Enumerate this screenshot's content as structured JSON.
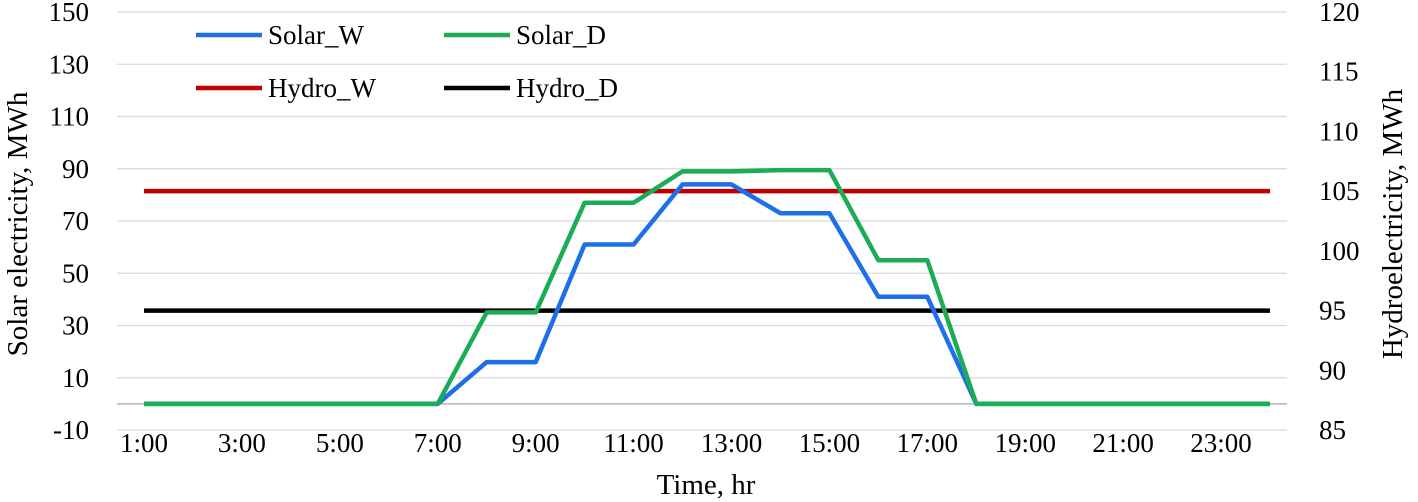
{
  "chart_data": {
    "type": "line",
    "x_categories": [
      "1:00",
      "2:00",
      "3:00",
      "4:00",
      "5:00",
      "6:00",
      "7:00",
      "8:00",
      "9:00",
      "10:00",
      "11:00",
      "12:00",
      "13:00",
      "14:00",
      "15:00",
      "16:00",
      "17:00",
      "18:00",
      "19:00",
      "20:00",
      "21:00",
      "22:00",
      "23:00",
      "24:00"
    ],
    "x_tick_labels": [
      "1:00",
      "3:00",
      "5:00",
      "7:00",
      "9:00",
      "11:00",
      "13:00",
      "15:00",
      "17:00",
      "19:00",
      "21:00",
      "23:00"
    ],
    "xlabel": "Time, hr",
    "y_left": {
      "label": "Solar electricity, MWh",
      "range": [
        -10,
        150
      ],
      "ticks": [
        "150",
        "130",
        "110",
        "90",
        "70",
        "50",
        "30",
        "10",
        "-10"
      ]
    },
    "y_right": {
      "label": "Hydroelectricity, MWh",
      "range": [
        85,
        120
      ],
      "ticks": [
        "120",
        "115",
        "110",
        "105",
        "100",
        "95",
        "90",
        "85"
      ]
    },
    "grid": "horizontal",
    "legend_position": "top-left",
    "series": [
      {
        "name": "Solar_W",
        "color": "#1f6fea",
        "axis": "left",
        "values": [
          0,
          0,
          0,
          0,
          0,
          0,
          0,
          16,
          16,
          61,
          61,
          84,
          84,
          73,
          73,
          41,
          41,
          0,
          0,
          0,
          0,
          0,
          0,
          0
        ]
      },
      {
        "name": "Solar_D",
        "color": "#1aad55",
        "axis": "left",
        "values": [
          0,
          0,
          0,
          0,
          0,
          0,
          0,
          35,
          35,
          77,
          77,
          89,
          89,
          89.5,
          89.5,
          55,
          55,
          0,
          0,
          0,
          0,
          0,
          0,
          0
        ]
      },
      {
        "name": "Hydro_W",
        "color": "#c00000",
        "axis": "right",
        "values": [
          105,
          105,
          105,
          105,
          105,
          105,
          105,
          105,
          105,
          105,
          105,
          105,
          105,
          105,
          105,
          105,
          105,
          105,
          105,
          105,
          105,
          105,
          105,
          105
        ]
      },
      {
        "name": "Hydro_D",
        "color": "#000000",
        "axis": "right",
        "values": [
          95,
          95,
          95,
          95,
          95,
          95,
          95,
          95,
          95,
          95,
          95,
          95,
          95,
          95,
          95,
          95,
          95,
          95,
          95,
          95,
          95,
          95,
          95,
          95
        ]
      }
    ]
  }
}
